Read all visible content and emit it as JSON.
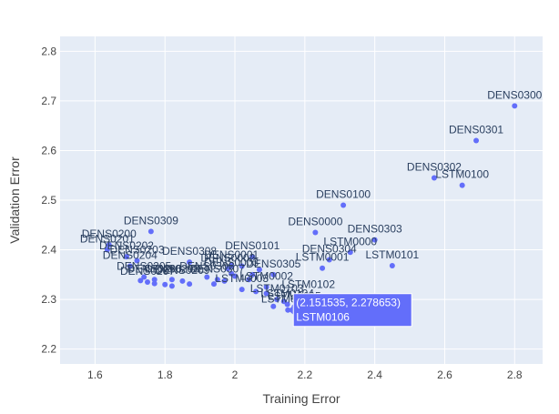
{
  "chart_data": {
    "type": "scatter",
    "title": "",
    "xlabel": "Training Error",
    "ylabel": "Validation Error",
    "xlim": [
      1.5,
      2.88
    ],
    "ylim": [
      2.17,
      2.83
    ],
    "x_ticks": [
      1.6,
      1.8,
      2,
      2.2,
      2.4,
      2.6,
      2.8
    ],
    "x_tick_labels": [
      "1.6",
      "1.8",
      "2",
      "2.2",
      "2.4",
      "2.6",
      "2.8"
    ],
    "y_ticks": [
      2.2,
      2.3,
      2.4,
      2.5,
      2.6,
      2.7,
      2.8
    ],
    "y_tick_labels": [
      "2.2",
      "2.3",
      "2.4",
      "2.5",
      "2.6",
      "2.7",
      "2.8"
    ],
    "grid": true,
    "colors": {
      "plot_bg": "#e5ecf6",
      "grid": "#ffffff",
      "marker": "#636efa",
      "text": "#2a3f5f",
      "axis_text": "#444444"
    },
    "points": [
      {
        "label": "DENS0300",
        "x": 2.8,
        "y": 2.69
      },
      {
        "label": "DENS0301",
        "x": 2.69,
        "y": 2.62
      },
      {
        "label": "DENS0302",
        "x": 2.57,
        "y": 2.545
      },
      {
        "label": "LSTM0100",
        "x": 2.65,
        "y": 2.53
      },
      {
        "label": "DENS0100",
        "x": 2.31,
        "y": 2.49
      },
      {
        "label": "DENS0000",
        "x": 2.23,
        "y": 2.435
      },
      {
        "label": "DENS0303",
        "x": 2.4,
        "y": 2.42
      },
      {
        "label": "LSTM0000",
        "x": 2.33,
        "y": 2.395
      },
      {
        "label": "DENS0304",
        "x": 2.27,
        "y": 2.38
      },
      {
        "label": "LSTM0101",
        "x": 2.45,
        "y": 2.368
      },
      {
        "label": "LSTM0001",
        "x": 2.25,
        "y": 2.363
      },
      {
        "label": "DENS0309",
        "x": 1.76,
        "y": 2.437
      },
      {
        "label": "DENS0200",
        "x": 1.64,
        "y": 2.41
      },
      {
        "label": "DENS0201",
        "x": 1.635,
        "y": 2.4
      },
      {
        "label": "DENS0202",
        "x": 1.69,
        "y": 2.386
      },
      {
        "label": "DENS0203",
        "x": 1.72,
        "y": 2.378
      },
      {
        "label": "DENS0204",
        "x": 1.7,
        "y": 2.367
      },
      {
        "label": "DENS0308",
        "x": 1.87,
        "y": 2.375
      },
      {
        "label": "DENS0101",
        "x": 2.05,
        "y": 2.386
      },
      {
        "label": "DENS0001",
        "x": 1.99,
        "y": 2.368
      },
      {
        "label": "DENS0002",
        "x": 1.98,
        "y": 2.362
      },
      {
        "label": "DENS0003",
        "x": 1.99,
        "y": 2.352
      },
      {
        "label": "DENS0305",
        "x": 2.11,
        "y": 2.35
      },
      {
        "label": "LSTM0002",
        "x": 2.09,
        "y": 2.325
      },
      {
        "label": "LSTM0102",
        "x": 2.21,
        "y": 2.308
      },
      {
        "label": "DENS0205",
        "x": 1.74,
        "y": 2.345
      },
      {
        "label": "DENS0206",
        "x": 1.77,
        "y": 2.34
      },
      {
        "label": "DENS0207",
        "x": 1.75,
        "y": 2.335
      },
      {
        "label": "DENS0208",
        "x": 1.82,
        "y": 2.34
      },
      {
        "label": "DENS0209",
        "x": 1.85,
        "y": 2.337
      },
      {
        "label": "DENS0306",
        "x": 1.92,
        "y": 2.345
      },
      {
        "label": "DENS0307",
        "x": 1.95,
        "y": 2.34
      },
      {
        "label": "LSTM0003",
        "x": 2.02,
        "y": 2.32
      },
      {
        "label": "LSTM0103",
        "x": 2.12,
        "y": 2.3
      },
      {
        "label": "LSTM0104",
        "x": 2.15,
        "y": 2.29
      },
      {
        "label": "LSTM0105",
        "x": 2.17,
        "y": 2.285
      },
      {
        "label": "LSTM0106",
        "x": 2.151535,
        "y": 2.278653
      },
      {
        "label": "",
        "x": 1.73,
        "y": 2.338
      },
      {
        "label": "",
        "x": 1.77,
        "y": 2.332
      },
      {
        "label": "",
        "x": 1.8,
        "y": 2.33
      },
      {
        "label": "",
        "x": 1.82,
        "y": 2.327
      },
      {
        "label": "",
        "x": 1.87,
        "y": 2.331
      },
      {
        "label": "",
        "x": 1.94,
        "y": 2.331
      },
      {
        "label": "",
        "x": 1.97,
        "y": 2.337
      },
      {
        "label": "",
        "x": 2.0,
        "y": 2.347
      },
      {
        "label": "",
        "x": 2.04,
        "y": 2.34
      },
      {
        "label": "",
        "x": 2.06,
        "y": 2.316
      },
      {
        "label": "",
        "x": 2.09,
        "y": 2.312
      },
      {
        "label": "",
        "x": 2.11,
        "y": 2.286
      },
      {
        "label": "",
        "x": 2.14,
        "y": 2.296
      },
      {
        "label": "",
        "x": 2.19,
        "y": 2.287
      },
      {
        "label": "",
        "x": 2.02,
        "y": 2.367
      },
      {
        "label": "",
        "x": 2.07,
        "y": 2.36
      },
      {
        "label": "",
        "x": 2.05,
        "y": 2.35
      }
    ],
    "hover": {
      "x": 2.151535,
      "y": 2.278653,
      "text_line1": "(2.151535, 2.278653)",
      "text_line2": "LSTM0106"
    }
  }
}
